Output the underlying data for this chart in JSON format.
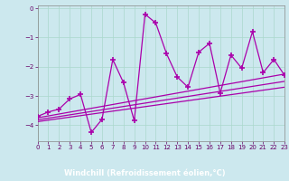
{
  "title": "",
  "xlabel": "Windchill (Refroidissement éolien,°C)",
  "ylabel": "",
  "background_color": "#cce8ee",
  "plot_bg_color": "#cce8ee",
  "line_color": "#aa00aa",
  "xlabel_bg": "#660066",
  "xlabel_fg": "#ffffff",
  "xlim": [
    0,
    23
  ],
  "ylim": [
    -4.55,
    0.1
  ],
  "yticks": [
    0,
    -1,
    -2,
    -3,
    -4
  ],
  "xticks": [
    0,
    1,
    2,
    3,
    4,
    5,
    6,
    7,
    8,
    9,
    10,
    11,
    12,
    13,
    14,
    15,
    16,
    17,
    18,
    19,
    20,
    21,
    22,
    23
  ],
  "series": [
    [
      0,
      -3.7
    ],
    [
      1,
      -3.55
    ],
    [
      2,
      -3.45
    ],
    [
      3,
      -3.1
    ],
    [
      4,
      -2.95
    ],
    [
      5,
      -4.25
    ],
    [
      6,
      -3.8
    ],
    [
      7,
      -1.75
    ],
    [
      8,
      -2.55
    ],
    [
      9,
      -3.85
    ],
    [
      10,
      -0.2
    ],
    [
      11,
      -0.5
    ],
    [
      12,
      -1.55
    ],
    [
      13,
      -2.35
    ],
    [
      14,
      -2.7
    ],
    [
      15,
      -1.5
    ],
    [
      16,
      -1.2
    ],
    [
      17,
      -2.9
    ],
    [
      18,
      -1.6
    ],
    [
      19,
      -2.05
    ],
    [
      20,
      -0.8
    ],
    [
      21,
      -2.2
    ],
    [
      22,
      -1.75
    ],
    [
      23,
      -2.3
    ]
  ],
  "trend_lines": [
    [
      [
        0,
        -3.75
      ],
      [
        23,
        -2.25
      ]
    ],
    [
      [
        0,
        -3.82
      ],
      [
        23,
        -2.5
      ]
    ],
    [
      [
        0,
        -3.88
      ],
      [
        23,
        -2.7
      ]
    ]
  ],
  "grid_color": "#aad8cc",
  "spine_color": "#888888",
  "tick_color": "#660066",
  "tick_label_color": "#660066"
}
